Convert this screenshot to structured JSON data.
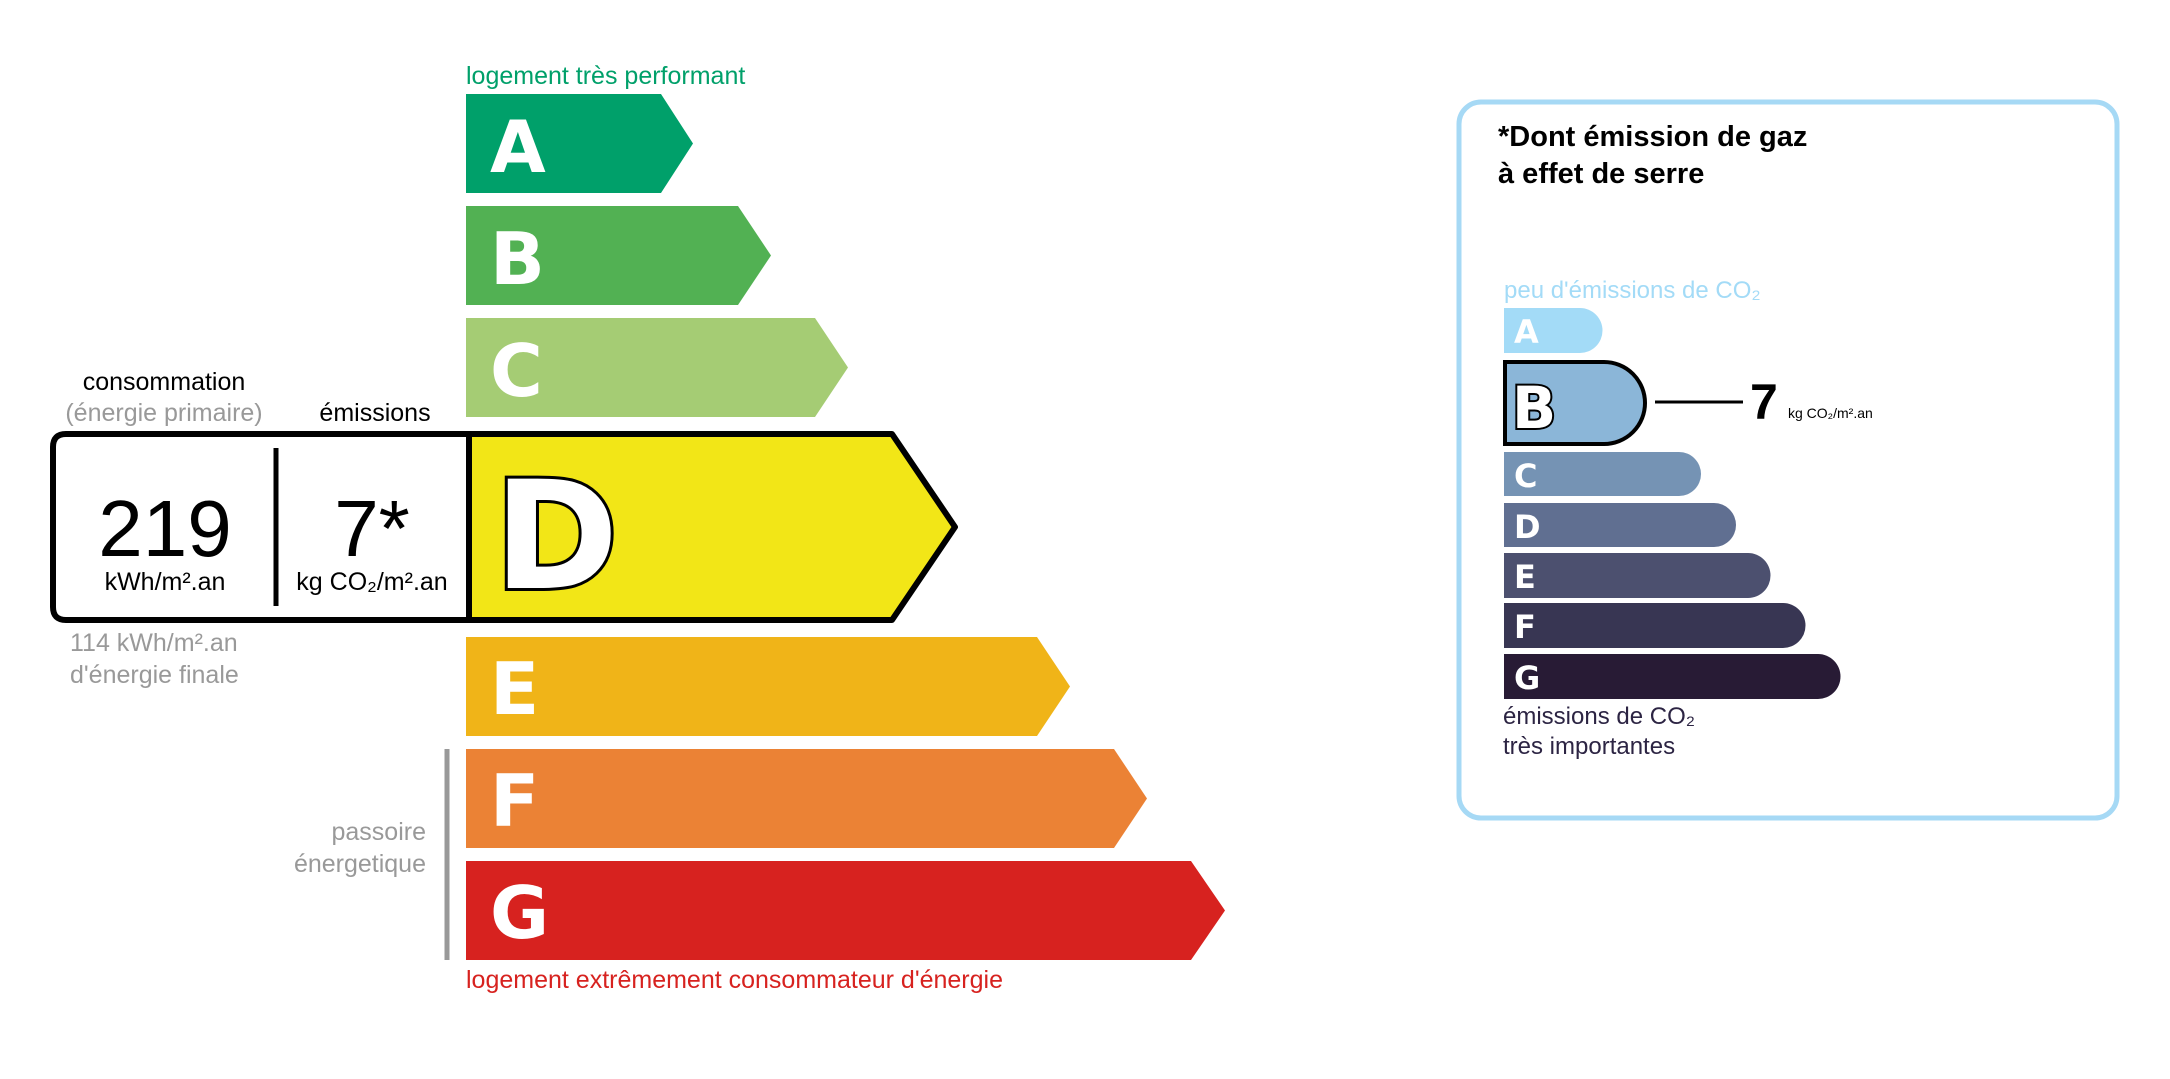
{
  "energy": {
    "top_label": "logement très performant",
    "bottom_label": "logement extrêmement consommateur d'énergie",
    "passoire": [
      "passoire",
      "énergetique"
    ],
    "classes": [
      {
        "letter": "A",
        "color": "#00a06a"
      },
      {
        "letter": "B",
        "color": "#52b153"
      },
      {
        "letter": "C",
        "color": "#a5cc74"
      },
      {
        "letter": "D",
        "color": "#f2e617"
      },
      {
        "letter": "E",
        "color": "#f0b418"
      },
      {
        "letter": "F",
        "color": "#eb8235"
      },
      {
        "letter": "G",
        "color": "#d7221f"
      }
    ],
    "active_class": "D",
    "consumption_label": "consommation",
    "consumption_sub": "(énergie primaire)",
    "emissions_label": "émissions",
    "consumption_value": "219",
    "consumption_unit": "kWh/m².an",
    "emissions_value": "7*",
    "emissions_unit": "kg CO₂/m².an",
    "final_value": "114 kWh/m².an",
    "final_label": "d'énergie finale"
  },
  "ges": {
    "title": [
      "*Dont émission de gaz",
      "à effet de serre"
    ],
    "top_label": "peu d'émissions de CO₂",
    "bottom_label": [
      "émissions de CO₂",
      "très importantes"
    ],
    "classes": [
      {
        "letter": "A",
        "color": "#a3dbf7"
      },
      {
        "letter": "B",
        "color": "#8bb6d8"
      },
      {
        "letter": "C",
        "color": "#7593b4"
      },
      {
        "letter": "D",
        "color": "#606f91"
      },
      {
        "letter": "E",
        "color": "#4c506f"
      },
      {
        "letter": "F",
        "color": "#383653"
      },
      {
        "letter": "G",
        "color": "#281b35"
      }
    ],
    "active_class": "B",
    "value": "7",
    "unit": "kg CO₂/m².an",
    "border_color": "#a6d9f5"
  }
}
